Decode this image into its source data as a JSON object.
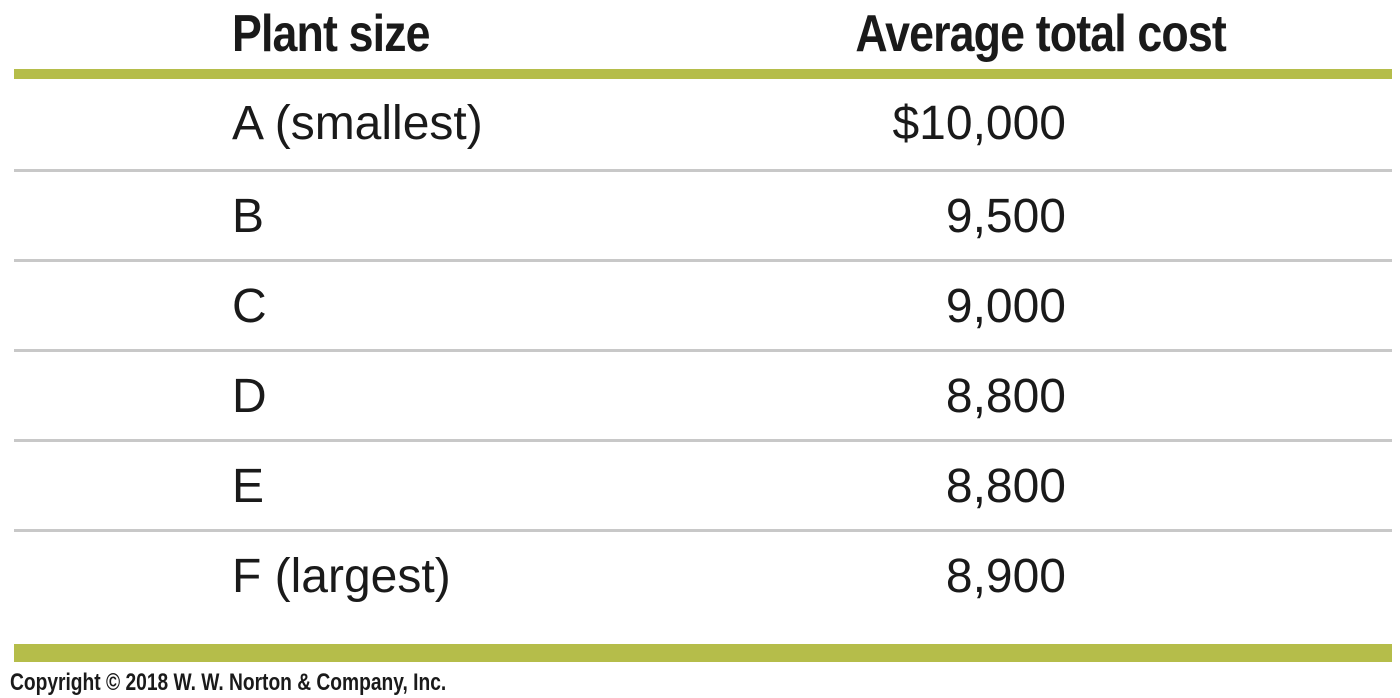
{
  "table": {
    "headers": {
      "plant_size": "Plant size",
      "average_total_cost": "Average total cost"
    },
    "rows": [
      {
        "plant_size": "A (smallest)",
        "average_total_cost": "$10,000"
      },
      {
        "plant_size": "B",
        "average_total_cost": "9,500"
      },
      {
        "plant_size": "C",
        "average_total_cost": "9,000"
      },
      {
        "plant_size": "D",
        "average_total_cost": "8,800"
      },
      {
        "plant_size": "E",
        "average_total_cost": "8,800"
      },
      {
        "plant_size": "F (largest)",
        "average_total_cost": "8,900"
      }
    ]
  },
  "footer": {
    "copyright": "Copyright © 2018 W. W. Norton & Company, Inc."
  },
  "colors": {
    "accent_rule": "#b5bd4a",
    "row_divider": "#c8c8c8",
    "text": "#1a1a1a"
  }
}
